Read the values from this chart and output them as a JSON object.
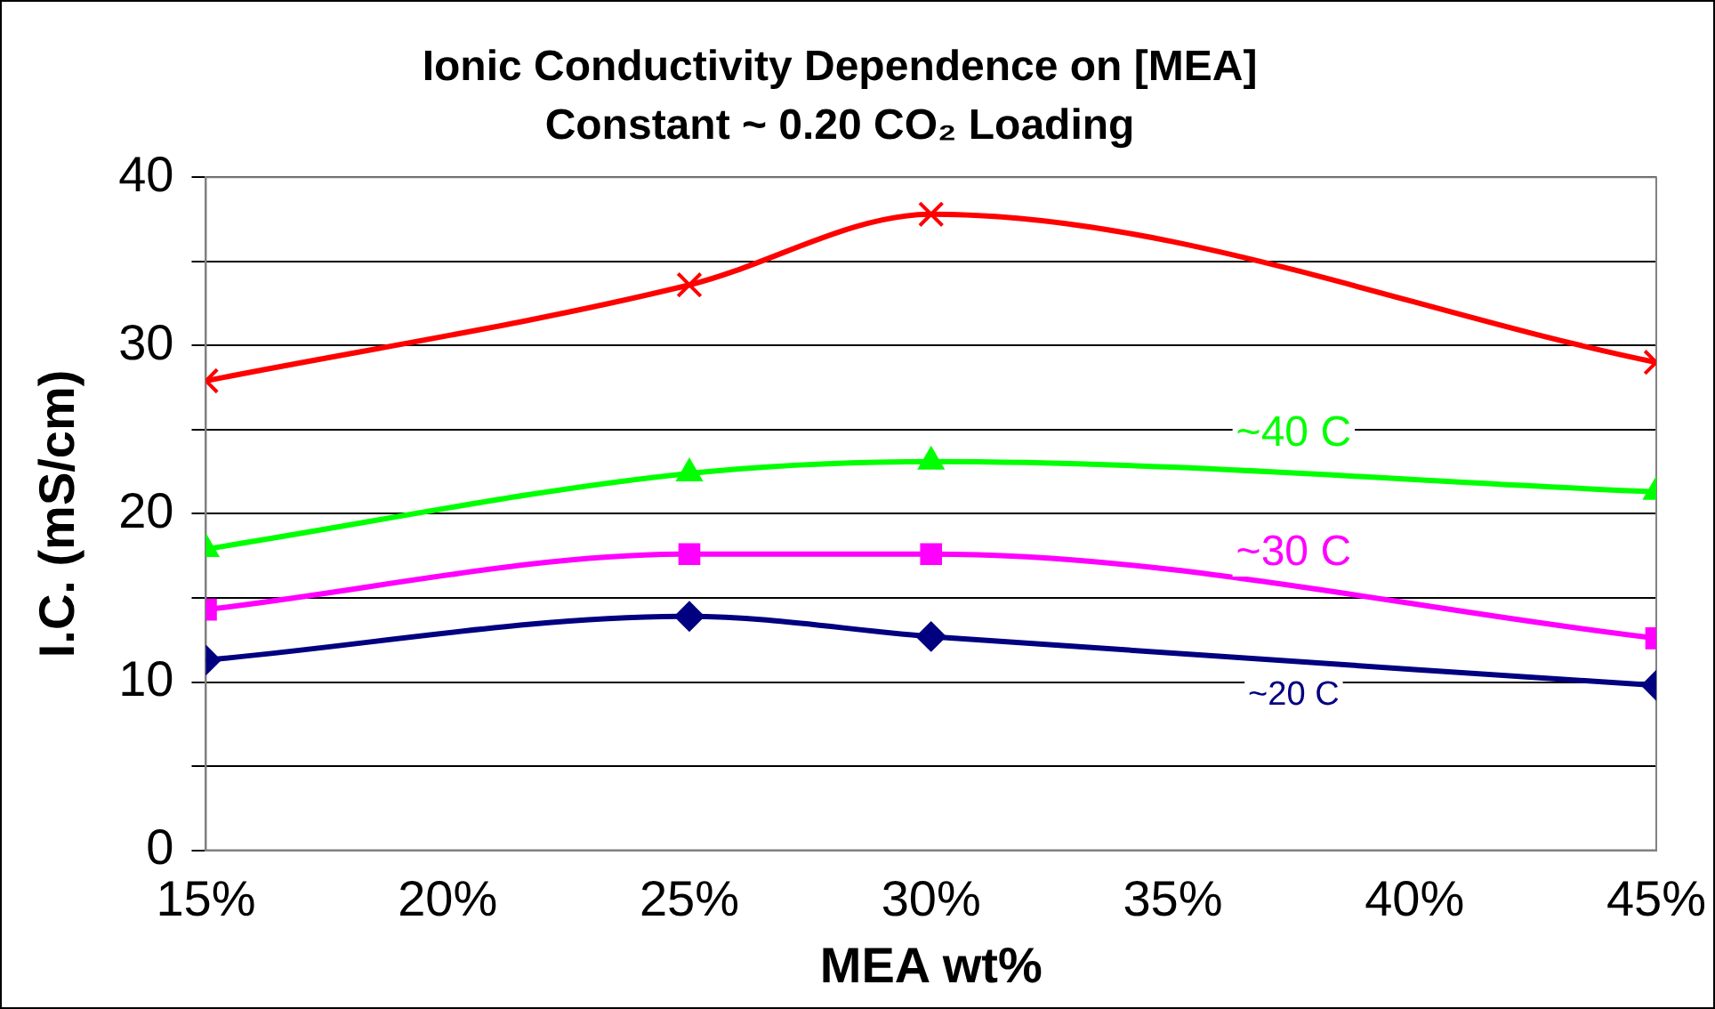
{
  "chart_data": {
    "type": "line",
    "title": "Ionic Conductivity Dependence on [MEA]",
    "subtitle": "Constant ~ 0.20 CO₂ Loading",
    "xlabel": "MEA wt%",
    "ylabel": "I.C. (mS/cm)",
    "x": [
      15,
      25,
      30,
      45
    ],
    "series": [
      {
        "color": "#ff0000",
        "marker": "cross",
        "values": [
          27.9,
          33.6,
          37.8,
          29.0
        ]
      },
      {
        "name": "~40 C",
        "color": "#00ff00",
        "marker": "triangle",
        "values": [
          17.9,
          22.4,
          23.1,
          21.3
        ]
      },
      {
        "name": "~30 C",
        "color": "#ff00ff",
        "marker": "square",
        "values": [
          14.3,
          17.6,
          17.6,
          12.6
        ]
      },
      {
        "name": "~20 C",
        "color": "#000080",
        "marker": "diamond",
        "values": [
          11.3,
          13.9,
          12.7,
          9.8
        ]
      }
    ],
    "xlim": [
      15,
      45
    ],
    "xticks": [
      {
        "value": 15,
        "label": "15%"
      },
      {
        "value": 20,
        "label": "20%"
      },
      {
        "value": 25,
        "label": "25%"
      },
      {
        "value": 30,
        "label": "30%"
      },
      {
        "value": 35,
        "label": "35%"
      },
      {
        "value": 40,
        "label": "40%"
      },
      {
        "value": 45,
        "label": "45%"
      }
    ],
    "ylim": [
      0,
      40
    ],
    "yticks": [
      0,
      {
        "value": 5,
        "label": null
      },
      10,
      {
        "value": 15,
        "label": null
      },
      20,
      {
        "value": 25,
        "label": null
      },
      30,
      {
        "value": 35,
        "label": null
      },
      40
    ],
    "grid": "y",
    "legend": false
  }
}
